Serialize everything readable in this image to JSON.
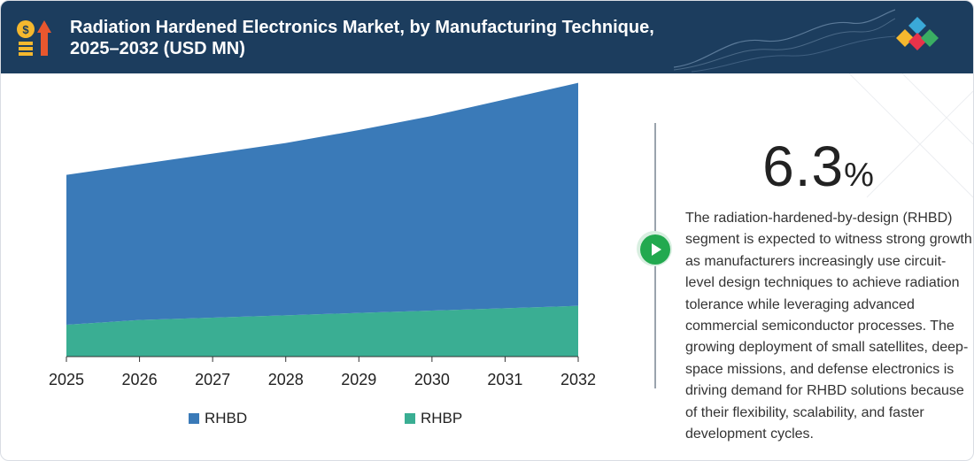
{
  "header": {
    "title": "Radiation Hardened Electronics Market, by Manufacturing Technique, 2025–2032 (USD MN)",
    "icon": "money-growth-icon",
    "logo": "brand-diamonds-logo"
  },
  "colors": {
    "header_bg": "#1c3d5e",
    "rhbd": "#3a7ab8",
    "rhbp": "#3aae93",
    "accent_green": "#22a94f"
  },
  "chart_data": {
    "type": "area",
    "stacked": true,
    "x": [
      "2025",
      "2026",
      "2027",
      "2028",
      "2029",
      "2030",
      "2031",
      "2032"
    ],
    "series": [
      {
        "name": "RHBP",
        "values": [
          27,
          31,
          33,
          35,
          37,
          39,
          41,
          43
        ]
      },
      {
        "name": "RHBD",
        "values": [
          127,
          132,
          139,
          146,
          155,
          165,
          177,
          189
        ]
      }
    ],
    "ylim": [
      0,
      240
    ],
    "xlabel": "",
    "ylabel": "",
    "legend_position": "bottom",
    "grid": false,
    "title": ""
  },
  "legend": [
    {
      "label": "RHBD",
      "color": "#3a7ab8"
    },
    {
      "label": "RHBP",
      "color": "#3aae93"
    }
  ],
  "sidebar": {
    "cagr_value": "6.3",
    "cagr_unit": "%",
    "play_icon": "play-icon",
    "description": "The radiation-hardened-by-design (RHBD) segment is expected to witness strong growth as manufacturers increasingly use circuit-level design techniques to achieve radiation tolerance while leveraging advanced commercial semiconductor processes. The growing deployment of small satellites, deep-space missions, and defense electronics is driving demand for RHBD solutions because of their flexibility, scalability, and faster development cycles."
  }
}
